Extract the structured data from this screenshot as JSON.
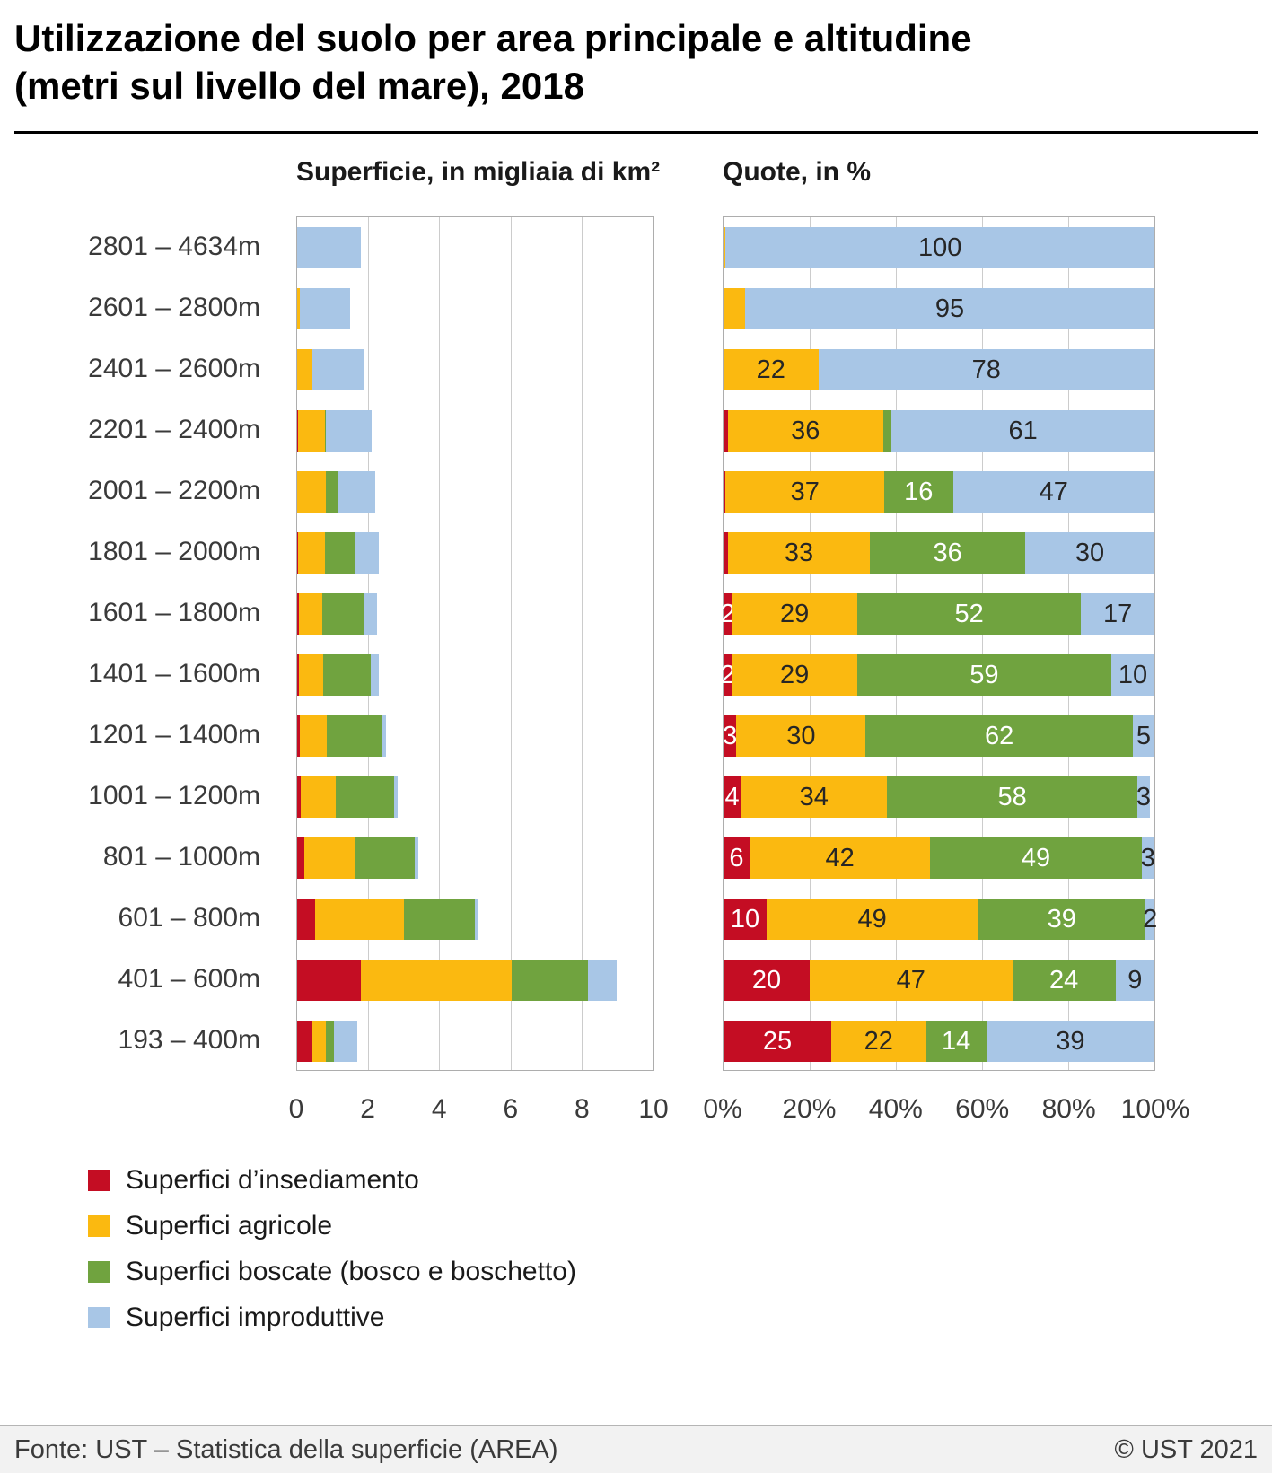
{
  "title_lines": [
    "Utilizzazione del suolo per area principale e altitudine",
    "(metri sul livello del mare), 2018"
  ],
  "legend": [
    {
      "key": "insediamento",
      "label": "Superfici d’insediamento",
      "color": "#c40d23"
    },
    {
      "key": "agricole",
      "label": "Superfici agricole",
      "color": "#fbb910"
    },
    {
      "key": "boscate",
      "label": "Superfici boscate (bosco e boschetto)",
      "color": "#70a33f"
    },
    {
      "key": "improduttive",
      "label": "Superfici improduttive",
      "color": "#a8c6e6"
    }
  ],
  "footer": {
    "source": "Fonte: UST – Statistica della superficie (AREA)",
    "copyright": "© UST 2021"
  },
  "chart_data": [
    {
      "type": "bar",
      "orientation": "horizontal",
      "stacked": true,
      "title": "Superficie, in migliaia di km²",
      "xlabel": "",
      "xlim": [
        0,
        10
      ],
      "gridlines": [
        2,
        4,
        6,
        8
      ],
      "xticks": [
        {
          "value": 0,
          "label": "0"
        },
        {
          "value": 2,
          "label": "2"
        },
        {
          "value": 4,
          "label": "4"
        },
        {
          "value": 6,
          "label": "6"
        },
        {
          "value": 8,
          "label": "8"
        },
        {
          "value": 10,
          "label": "10"
        }
      ],
      "categories": [
        "2801 – 4634m",
        "2601 – 2800m",
        "2401 – 2600m",
        "2201 – 2400m",
        "2001 – 2200m",
        "1801 – 2000m",
        "1601 – 1800m",
        "1401 – 1600m",
        "1201 – 1400m",
        "1001 – 1200m",
        "801 – 1000m",
        "601 – 800m",
        "401 – 600m",
        "193 – 400m"
      ],
      "series": [
        {
          "key": "insediamento",
          "name": "Superfici d’insediamento",
          "color": "#c40d23",
          "values": [
            0,
            0,
            0,
            0.02,
            0.01,
            0.02,
            0.05,
            0.05,
            0.08,
            0.11,
            0.2,
            0.51,
            1.8,
            0.43
          ]
        },
        {
          "key": "agricole",
          "name": "Superfici agricole",
          "color": "#fbb910",
          "values": [
            0,
            0.08,
            0.42,
            0.76,
            0.81,
            0.76,
            0.65,
            0.67,
            0.75,
            0.97,
            1.43,
            2.5,
            4.23,
            0.37
          ]
        },
        {
          "key": "boscate",
          "name": "Superfici boscate (bosco e boschetto)",
          "color": "#70a33f",
          "values": [
            0,
            0,
            0,
            0.04,
            0.35,
            0.83,
            1.17,
            1.36,
            1.55,
            1.65,
            1.67,
            1.99,
            2.16,
            0.24
          ]
        },
        {
          "key": "improduttive",
          "name": "Superfici improduttive",
          "color": "#a8c6e6",
          "values": [
            1.8,
            1.42,
            1.48,
            1.28,
            1.03,
            0.69,
            0.38,
            0.23,
            0.12,
            0.09,
            0.1,
            0.1,
            0.81,
            0.66
          ]
        }
      ]
    },
    {
      "type": "bar",
      "orientation": "horizontal",
      "stacked": true,
      "title": "Quote, in %",
      "xlabel": "",
      "xlim": [
        0,
        100
      ],
      "gridlines": [
        20,
        40,
        60,
        80
      ],
      "xticks": [
        {
          "value": 0,
          "label": "0%"
        },
        {
          "value": 20,
          "label": "20%"
        },
        {
          "value": 40,
          "label": "40%"
        },
        {
          "value": 60,
          "label": "60%"
        },
        {
          "value": 80,
          "label": "80%"
        },
        {
          "value": 100,
          "label": "100%"
        }
      ],
      "categories": [
        "2801 – 4634m",
        "2601 – 2800m",
        "2401 – 2600m",
        "2201 – 2400m",
        "2001 – 2200m",
        "1801 – 2000m",
        "1601 – 1800m",
        "1401 – 1600m",
        "1201 – 1400m",
        "1001 – 1200m",
        "801 – 1000m",
        "601 – 800m",
        "401 – 600m",
        "193 – 400m"
      ],
      "series": [
        {
          "key": "insediamento",
          "name": "Superfici d’insediamento",
          "color": "#c40d23",
          "label_color": "#ffffff",
          "values": [
            0,
            0,
            0,
            1,
            0.5,
            1,
            2,
            2,
            3,
            4,
            6,
            10,
            20,
            25
          ],
          "labels": [
            "",
            "",
            "",
            "",
            "",
            "",
            "2",
            "2",
            "3",
            "4",
            "6",
            "10",
            "20",
            "25"
          ]
        },
        {
          "key": "agricole",
          "name": "Superfici agricole",
          "color": "#fbb910",
          "label_color": "#262626",
          "values": [
            0.5,
            5,
            22,
            36,
            37,
            33,
            29,
            29,
            30,
            34,
            42,
            49,
            47,
            22
          ],
          "labels": [
            "",
            "",
            "22",
            "36",
            "37",
            "33",
            "29",
            "29",
            "30",
            "34",
            "42",
            "49",
            "47",
            "22"
          ]
        },
        {
          "key": "boscate",
          "name": "Superfici boscate (bosco e boschetto)",
          "color": "#70a33f",
          "label_color": "#ffffff",
          "values": [
            0,
            0,
            0,
            2,
            16,
            36,
            52,
            59,
            62,
            58,
            49,
            39,
            24,
            14
          ],
          "labels": [
            "",
            "",
            "",
            "",
            "16",
            "36",
            "52",
            "59",
            "62",
            "58",
            "49",
            "39",
            "24",
            "14"
          ]
        },
        {
          "key": "improduttive",
          "name": "Superfici improduttive",
          "color": "#a8c6e6",
          "label_color": "#262626",
          "values": [
            99.5,
            95,
            78,
            61,
            47,
            30,
            17,
            10,
            5,
            3,
            3,
            2,
            9,
            39
          ],
          "labels": [
            "100",
            "95",
            "78",
            "61",
            "47",
            "30",
            "17",
            "10",
            "5",
            "3",
            "3",
            "2",
            "9",
            "39"
          ]
        }
      ]
    }
  ]
}
